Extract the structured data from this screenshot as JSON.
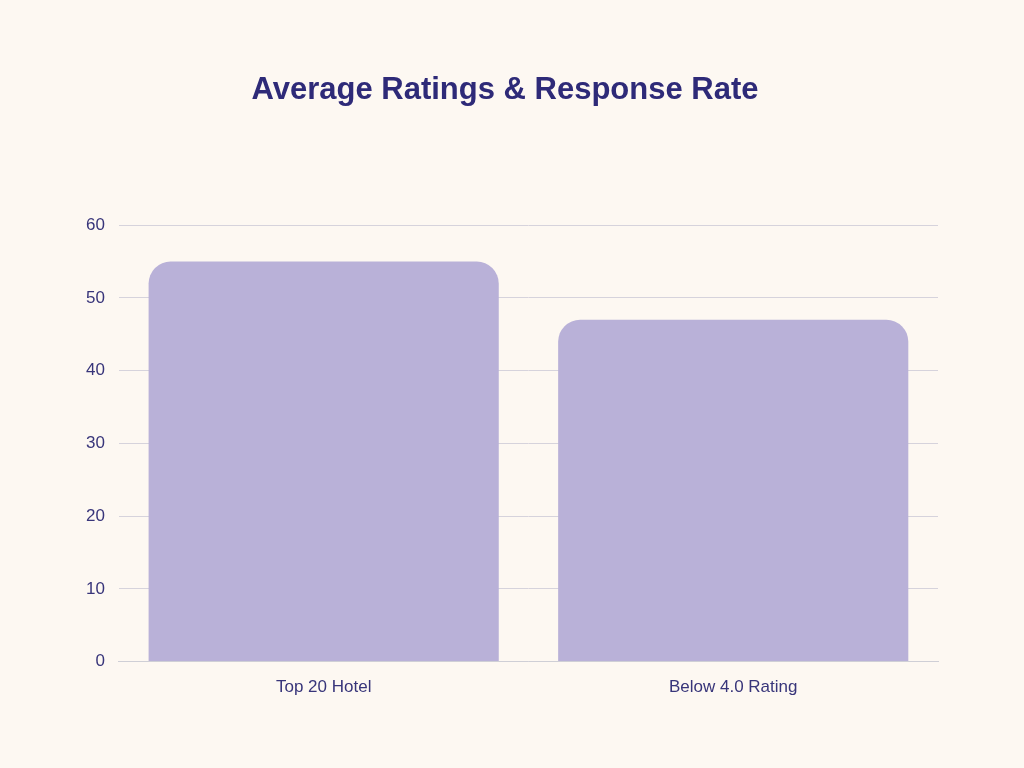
{
  "chart_data": {
    "type": "bar",
    "title": "Average Ratings & Response Rate",
    "categories": [
      "Top 20 Hotel",
      "Below 4.0 Rating"
    ],
    "values": [
      55,
      47
    ],
    "color": "#b9b1d8",
    "ylim": [
      0,
      60
    ],
    "yticks": [
      0,
      10,
      20,
      30,
      40,
      50,
      60
    ],
    "grid": true
  }
}
